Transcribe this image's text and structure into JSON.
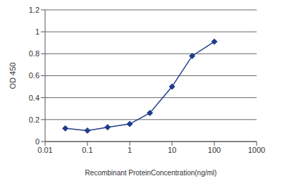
{
  "chart_data": {
    "type": "line",
    "x_label": "Recombinant ProteinConcentration(ng/ml)",
    "y_label": "OD 450",
    "x": [
      0.03,
      0.1,
      0.3,
      1,
      3,
      10,
      30,
      100
    ],
    "values": [
      0.12,
      0.1,
      0.13,
      0.16,
      0.26,
      0.5,
      0.78,
      0.91
    ],
    "color": "#203c8c",
    "marker": "diamond",
    "log": "x",
    "xlim": [
      0.01,
      1000
    ],
    "xticks": [
      0.01,
      0.1,
      1,
      10,
      100,
      1000
    ],
    "ylim": [
      0,
      1.2
    ],
    "yticks": [
      0,
      0.2,
      0.4,
      0.6,
      0.8,
      1,
      1.2
    ],
    "grid": true
  }
}
